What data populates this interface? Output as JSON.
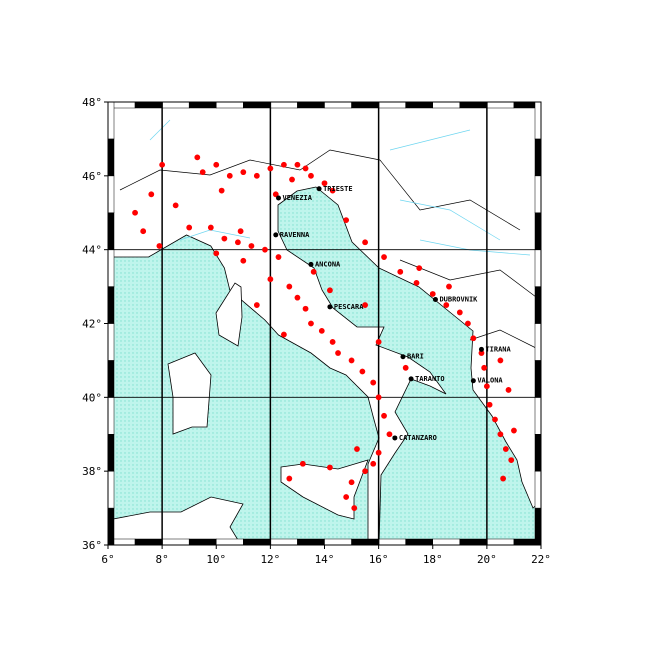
{
  "chart_data": {
    "type": "map",
    "xlim": [
      6,
      22
    ],
    "ylim": [
      36,
      48
    ],
    "xticks": [
      {
        "value": 6,
        "label": "6°"
      },
      {
        "value": 8,
        "label": "8°"
      },
      {
        "value": 10,
        "label": "10°"
      },
      {
        "value": 12,
        "label": "12°"
      },
      {
        "value": 14,
        "label": "14°"
      },
      {
        "value": 16,
        "label": "16°"
      },
      {
        "value": 18,
        "label": "18°"
      },
      {
        "value": 20,
        "label": "20°"
      },
      {
        "value": 22,
        "label": "22°"
      }
    ],
    "yticks": [
      {
        "value": 36,
        "label": "36°"
      },
      {
        "value": 38,
        "label": "38°"
      },
      {
        "value": 40,
        "label": "40°"
      },
      {
        "value": 42,
        "label": "42°"
      },
      {
        "value": 44,
        "label": "44°"
      },
      {
        "value": 46,
        "label": "46°"
      },
      {
        "value": 48,
        "label": "48°"
      }
    ],
    "grid_lon": [
      8,
      12,
      16,
      20
    ],
    "grid_lat": [
      40,
      44
    ],
    "cities": [
      {
        "name": "TRIESTE",
        "lon": 13.8,
        "lat": 45.65
      },
      {
        "name": "VENEZIA",
        "lon": 12.3,
        "lat": 45.4
      },
      {
        "name": "RAVENNA",
        "lon": 12.2,
        "lat": 44.4
      },
      {
        "name": "ANCONA",
        "lon": 13.5,
        "lat": 43.6
      },
      {
        "name": "PESCARA",
        "lon": 14.2,
        "lat": 42.45
      },
      {
        "name": "BARI",
        "lon": 16.9,
        "lat": 41.1
      },
      {
        "name": "TARANTO",
        "lon": 17.2,
        "lat": 40.5
      },
      {
        "name": "CATANZARO",
        "lon": 16.6,
        "lat": 38.9
      },
      {
        "name": "DUBROVNIK",
        "lon": 18.1,
        "lat": 42.65
      },
      {
        "name": "TIRANA",
        "lon": 19.8,
        "lat": 41.3
      },
      {
        "name": "VALONA",
        "lon": 19.5,
        "lat": 40.45
      }
    ],
    "event_color": "#ff0000",
    "events": {
      "lon": [
        7.0,
        7.3,
        7.6,
        8.0,
        9.3,
        10.0,
        10.5,
        11.0,
        11.5,
        12.0,
        12.5,
        13.0,
        13.3,
        12.8,
        13.5,
        14.0,
        14.3,
        10.2,
        8.5,
        9.0,
        9.8,
        10.3,
        10.8,
        11.3,
        11.8,
        12.3,
        11.0,
        12.0,
        12.7,
        13.0,
        13.3,
        13.5,
        13.9,
        14.3,
        14.5,
        15.0,
        15.4,
        15.8,
        16.0,
        16.2,
        16.4,
        16.0,
        15.8,
        15.5,
        15.0,
        14.8,
        15.1,
        14.2,
        13.2,
        12.7,
        11.5,
        12.5,
        10.9,
        14.8,
        15.5,
        16.2,
        16.8,
        17.4,
        18.0,
        18.5,
        19.0,
        19.3,
        19.5,
        19.8,
        19.9,
        20.0,
        20.1,
        20.3,
        20.5,
        20.7,
        20.9,
        20.6,
        21.0,
        20.8,
        20.5,
        17.5,
        18.6,
        15.5,
        16.0,
        17.0,
        13.6,
        14.2,
        15.2,
        9.5,
        7.9,
        10.0,
        12.2
      ],
      "lat": [
        45.0,
        44.5,
        45.5,
        46.3,
        46.5,
        46.3,
        46.0,
        46.1,
        46.0,
        46.2,
        46.3,
        46.3,
        46.2,
        45.9,
        46.0,
        45.8,
        45.6,
        45.6,
        45.2,
        44.6,
        44.6,
        44.3,
        44.2,
        44.1,
        44.0,
        43.8,
        43.7,
        43.2,
        43.0,
        42.7,
        42.4,
        42.0,
        41.8,
        41.5,
        41.2,
        41.0,
        40.7,
        40.4,
        40.0,
        39.5,
        39.0,
        38.5,
        38.2,
        38.0,
        37.7,
        37.3,
        37.0,
        38.1,
        38.2,
        37.8,
        42.5,
        41.7,
        44.5,
        44.8,
        44.2,
        43.8,
        43.4,
        43.1,
        42.8,
        42.5,
        42.3,
        42.0,
        41.6,
        41.2,
        40.8,
        40.3,
        39.8,
        39.4,
        39.0,
        38.6,
        38.3,
        37.8,
        39.1,
        40.2,
        41.0,
        43.5,
        43.0,
        42.5,
        41.5,
        40.8,
        43.4,
        42.9,
        38.6,
        46.1,
        44.1,
        43.9,
        45.5
      ]
    }
  }
}
